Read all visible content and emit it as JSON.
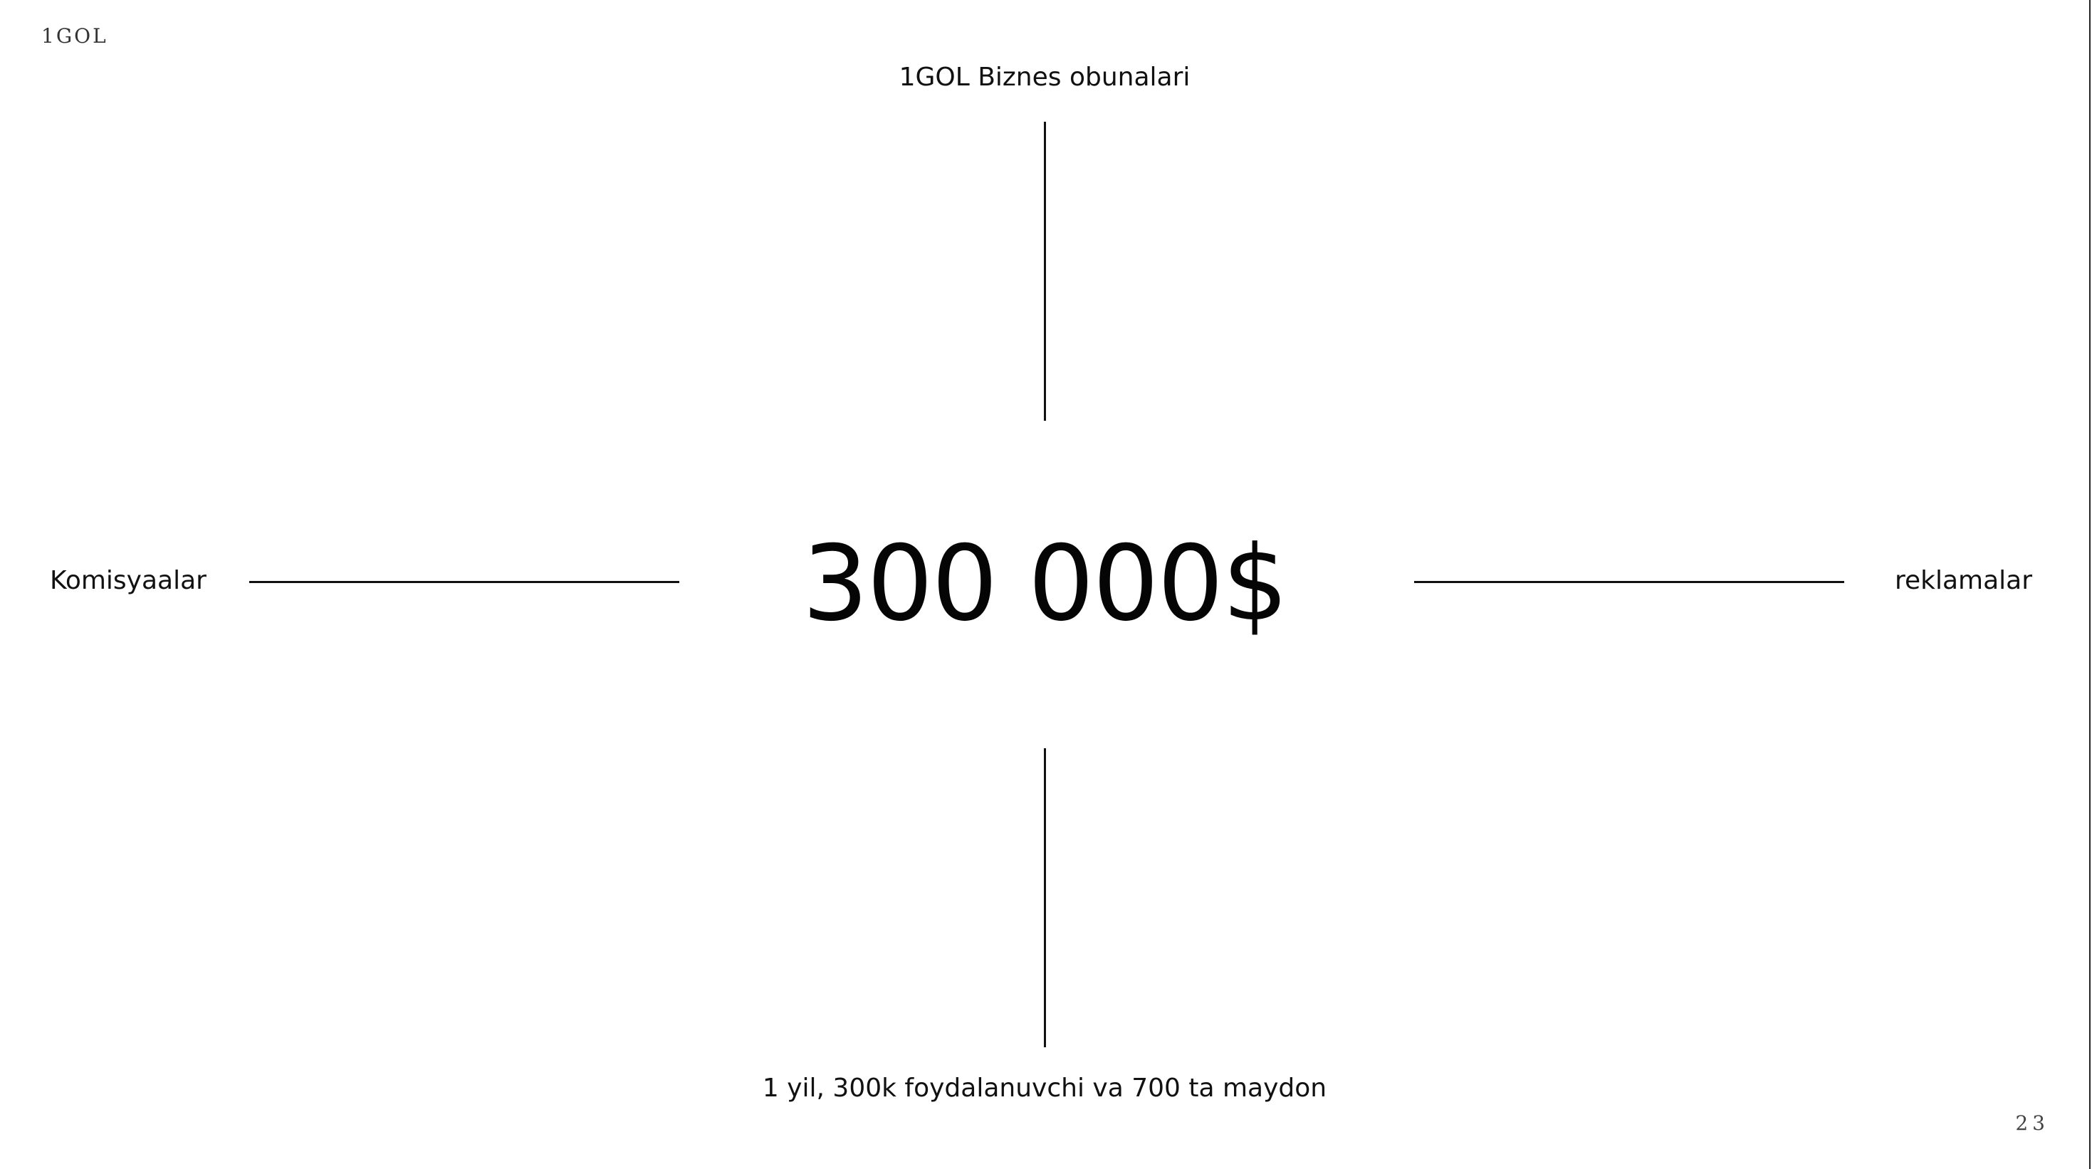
{
  "slide": {
    "brand": "1GOL",
    "center_value": "300 000$",
    "top_label": "1GOL Biznes obunalari",
    "left_label": "Komisyaalar",
    "right_label": "reklamalar",
    "bottom_label": "1 yil, 300k foydalanuvchi va 700 ta maydon",
    "page_number": "23"
  },
  "colors": {
    "background": "#ffffff",
    "text": "#111111",
    "lines": "#111111"
  }
}
